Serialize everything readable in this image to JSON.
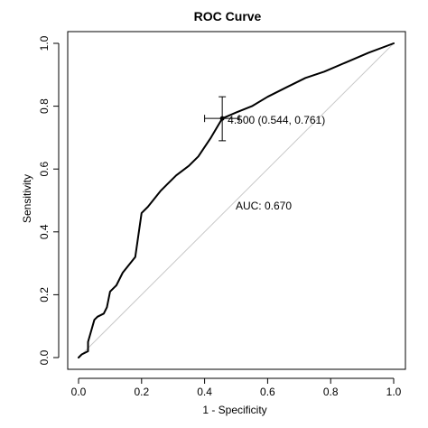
{
  "chart_data": {
    "type": "line",
    "title": "ROC Curve",
    "xlabel": "1 - Specificity",
    "ylabel": "Sensitivity",
    "xlim": [
      0.0,
      1.0
    ],
    "ylim": [
      0.0,
      1.0
    ],
    "xticks": [
      "0.0",
      "0.2",
      "0.4",
      "0.6",
      "0.8",
      "1.0"
    ],
    "yticks": [
      "0.0",
      "0.2",
      "0.4",
      "0.6",
      "0.8",
      "1.0"
    ],
    "grid": false,
    "legend": "none",
    "series": [
      {
        "x": [
          0.0,
          0.01,
          0.03,
          0.03,
          0.05,
          0.06,
          0.08,
          0.09,
          0.1,
          0.12,
          0.14,
          0.18,
          0.2,
          0.22,
          0.26,
          0.28,
          0.31,
          0.35,
          0.38,
          0.42,
          0.456,
          0.5,
          0.55,
          0.6,
          0.66,
          0.72,
          0.78,
          0.85,
          0.92,
          1.0
        ],
        "y": [
          0.0,
          0.01,
          0.02,
          0.05,
          0.12,
          0.13,
          0.14,
          0.16,
          0.21,
          0.23,
          0.27,
          0.32,
          0.46,
          0.48,
          0.53,
          0.55,
          0.58,
          0.61,
          0.64,
          0.7,
          0.761,
          0.78,
          0.8,
          0.83,
          0.86,
          0.89,
          0.91,
          0.94,
          0.97,
          1.0
        ]
      }
    ],
    "reference_line": {
      "x": [
        0.0,
        1.0
      ],
      "y": [
        0.0,
        1.0
      ]
    },
    "best_threshold": {
      "specificity": 0.544,
      "sensitivity": 0.761,
      "x": 0.456,
      "y": 0.761,
      "x_ci": [
        0.4,
        0.51
      ],
      "y_ci": [
        0.69,
        0.83
      ],
      "label": "4.500 (0.544, 0.761)"
    },
    "auc_label": "AUC: 0.670",
    "colors": {
      "roc": "#000000",
      "reference": "#c8c8c8",
      "axis": "#000000"
    }
  }
}
